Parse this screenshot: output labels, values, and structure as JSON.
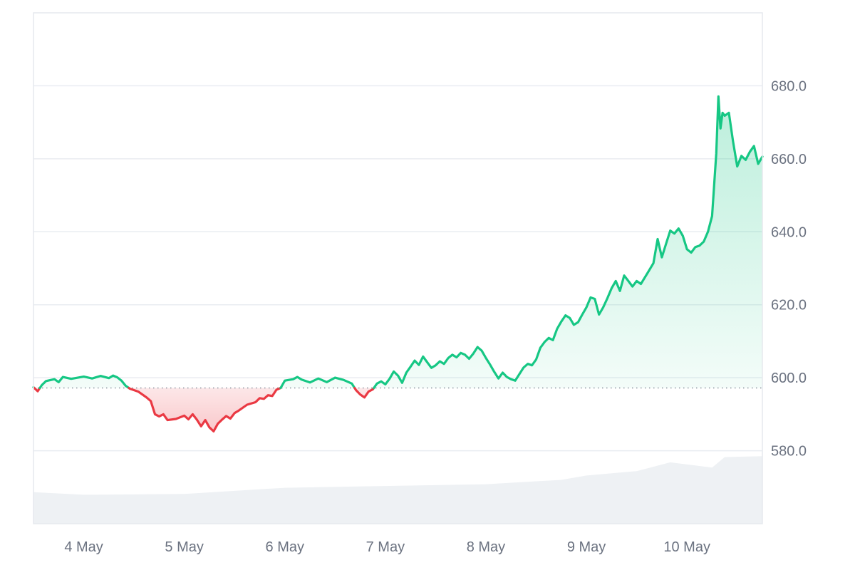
{
  "chart_data": {
    "type": "line",
    "baseline": 597.2,
    "ylim": [
      560,
      700
    ],
    "xlim": [
      "2024-05-03T12:00",
      "2024-05-10T18:00"
    ],
    "y_ticks": [
      {
        "value": 580,
        "label": "580.0"
      },
      {
        "value": 600,
        "label": "600.0"
      },
      {
        "value": 620,
        "label": "620.0"
      },
      {
        "value": 640,
        "label": "640.0"
      },
      {
        "value": 660,
        "label": "660.0"
      },
      {
        "value": 680,
        "label": "680.0"
      }
    ],
    "x_ticks": [
      {
        "value": "2024-05-04T00:00",
        "label": "4 May"
      },
      {
        "value": "2024-05-05T00:00",
        "label": "5 May"
      },
      {
        "value": "2024-05-06T00:00",
        "label": "6 May"
      },
      {
        "value": "2024-05-07T00:00",
        "label": "7 May"
      },
      {
        "value": "2024-05-08T00:00",
        "label": "8 May"
      },
      {
        "value": "2024-05-09T00:00",
        "label": "9 May"
      },
      {
        "value": "2024-05-10T00:00",
        "label": "10 May"
      }
    ],
    "series": [
      {
        "points": [
          [
            "2024-05-03T12:00",
            597.4
          ],
          [
            "2024-05-03T13:00",
            596.3
          ],
          [
            "2024-05-03T14:00",
            598.0
          ],
          [
            "2024-05-03T15:00",
            599.1
          ],
          [
            "2024-05-03T17:00",
            599.6
          ],
          [
            "2024-05-03T18:00",
            598.8
          ],
          [
            "2024-05-03T19:00",
            600.2
          ],
          [
            "2024-05-03T21:00",
            599.7
          ],
          [
            "2024-05-04T00:00",
            600.3
          ],
          [
            "2024-05-04T02:00",
            599.8
          ],
          [
            "2024-05-04T04:00",
            600.5
          ],
          [
            "2024-05-04T06:00",
            599.9
          ],
          [
            "2024-05-04T07:00",
            600.6
          ],
          [
            "2024-05-04T08:00",
            600.1
          ],
          [
            "2024-05-04T09:00",
            599.2
          ],
          [
            "2024-05-04T10:00",
            597.8
          ],
          [
            "2024-05-04T11:00",
            597.0
          ],
          [
            "2024-05-04T13:00",
            596.2
          ],
          [
            "2024-05-04T15:00",
            594.6
          ],
          [
            "2024-05-04T16:00",
            593.6
          ],
          [
            "2024-05-04T17:00",
            590.0
          ],
          [
            "2024-05-04T18:00",
            589.4
          ],
          [
            "2024-05-04T19:00",
            590.0
          ],
          [
            "2024-05-04T20:00",
            588.4
          ],
          [
            "2024-05-04T22:00",
            588.7
          ],
          [
            "2024-05-05T00:00",
            589.6
          ],
          [
            "2024-05-05T01:00",
            588.6
          ],
          [
            "2024-05-05T02:00",
            590.0
          ],
          [
            "2024-05-05T03:00",
            588.5
          ],
          [
            "2024-05-05T04:00",
            586.7
          ],
          [
            "2024-05-05T05:00",
            588.4
          ],
          [
            "2024-05-05T06:00",
            586.4
          ],
          [
            "2024-05-05T07:00",
            585.3
          ],
          [
            "2024-05-05T08:00",
            587.4
          ],
          [
            "2024-05-05T09:00",
            588.5
          ],
          [
            "2024-05-05T10:00",
            589.5
          ],
          [
            "2024-05-05T11:00",
            588.8
          ],
          [
            "2024-05-05T12:00",
            590.3
          ],
          [
            "2024-05-05T13:00",
            591.0
          ],
          [
            "2024-05-05T15:00",
            592.6
          ],
          [
            "2024-05-05T17:00",
            593.3
          ],
          [
            "2024-05-05T18:00",
            594.4
          ],
          [
            "2024-05-05T19:00",
            594.2
          ],
          [
            "2024-05-05T20:00",
            595.2
          ],
          [
            "2024-05-05T21:00",
            595.0
          ],
          [
            "2024-05-05T22:00",
            596.7
          ],
          [
            "2024-05-05T23:00",
            597.2
          ],
          [
            "2024-05-06T00:00",
            599.2
          ],
          [
            "2024-05-06T02:00",
            599.6
          ],
          [
            "2024-05-06T03:00",
            600.2
          ],
          [
            "2024-05-06T04:00",
            599.5
          ],
          [
            "2024-05-06T06:00",
            598.7
          ],
          [
            "2024-05-06T08:00",
            599.8
          ],
          [
            "2024-05-06T10:00",
            598.8
          ],
          [
            "2024-05-06T12:00",
            600.0
          ],
          [
            "2024-05-06T14:00",
            599.4
          ],
          [
            "2024-05-06T16:00",
            598.4
          ],
          [
            "2024-05-06T17:00",
            596.6
          ],
          [
            "2024-05-06T18:00",
            595.4
          ],
          [
            "2024-05-06T19:00",
            594.6
          ],
          [
            "2024-05-06T20:00",
            596.2
          ],
          [
            "2024-05-06T21:00",
            596.8
          ],
          [
            "2024-05-06T22:00",
            598.4
          ],
          [
            "2024-05-06T23:00",
            599.0
          ],
          [
            "2024-05-07T00:00",
            598.2
          ],
          [
            "2024-05-07T01:00",
            599.7
          ],
          [
            "2024-05-07T02:00",
            601.7
          ],
          [
            "2024-05-07T03:00",
            600.6
          ],
          [
            "2024-05-07T04:00",
            598.6
          ],
          [
            "2024-05-07T05:00",
            601.4
          ],
          [
            "2024-05-07T06:00",
            603.0
          ],
          [
            "2024-05-07T07:00",
            604.7
          ],
          [
            "2024-05-07T08:00",
            603.5
          ],
          [
            "2024-05-07T09:00",
            605.8
          ],
          [
            "2024-05-07T10:00",
            604.2
          ],
          [
            "2024-05-07T11:00",
            602.7
          ],
          [
            "2024-05-07T12:00",
            603.4
          ],
          [
            "2024-05-07T13:00",
            604.5
          ],
          [
            "2024-05-07T14:00",
            603.8
          ],
          [
            "2024-05-07T15:00",
            605.4
          ],
          [
            "2024-05-07T16:00",
            606.3
          ],
          [
            "2024-05-07T17:00",
            605.6
          ],
          [
            "2024-05-07T18:00",
            606.8
          ],
          [
            "2024-05-07T19:00",
            606.3
          ],
          [
            "2024-05-07T20:00",
            605.2
          ],
          [
            "2024-05-07T21:00",
            606.6
          ],
          [
            "2024-05-07T22:00",
            608.4
          ],
          [
            "2024-05-07T23:00",
            607.4
          ],
          [
            "2024-05-08T00:00",
            605.4
          ],
          [
            "2024-05-08T01:00",
            603.6
          ],
          [
            "2024-05-08T02:00",
            601.6
          ],
          [
            "2024-05-08T03:00",
            599.8
          ],
          [
            "2024-05-08T04:00",
            601.4
          ],
          [
            "2024-05-08T05:00",
            600.2
          ],
          [
            "2024-05-08T06:00",
            599.6
          ],
          [
            "2024-05-08T07:00",
            599.2
          ],
          [
            "2024-05-08T08:00",
            601.0
          ],
          [
            "2024-05-08T09:00",
            602.8
          ],
          [
            "2024-05-08T10:00",
            603.8
          ],
          [
            "2024-05-08T11:00",
            603.4
          ],
          [
            "2024-05-08T12:00",
            605.0
          ],
          [
            "2024-05-08T13:00",
            608.2
          ],
          [
            "2024-05-08T14:00",
            609.8
          ],
          [
            "2024-05-08T15:00",
            610.9
          ],
          [
            "2024-05-08T16:00",
            610.3
          ],
          [
            "2024-05-08T17:00",
            613.4
          ],
          [
            "2024-05-08T18:00",
            615.4
          ],
          [
            "2024-05-08T19:00",
            617.1
          ],
          [
            "2024-05-08T20:00",
            616.4
          ],
          [
            "2024-05-08T21:00",
            614.5
          ],
          [
            "2024-05-08T22:00",
            615.2
          ],
          [
            "2024-05-08T23:00",
            617.3
          ],
          [
            "2024-05-09T00:00",
            619.3
          ],
          [
            "2024-05-09T01:00",
            622.0
          ],
          [
            "2024-05-09T02:00",
            621.6
          ],
          [
            "2024-05-09T03:00",
            617.3
          ],
          [
            "2024-05-09T04:00",
            619.3
          ],
          [
            "2024-05-09T05:00",
            621.8
          ],
          [
            "2024-05-09T06:00",
            624.5
          ],
          [
            "2024-05-09T07:00",
            626.5
          ],
          [
            "2024-05-09T08:00",
            623.8
          ],
          [
            "2024-05-09T09:00",
            628.0
          ],
          [
            "2024-05-09T10:00",
            626.5
          ],
          [
            "2024-05-09T11:00",
            625.0
          ],
          [
            "2024-05-09T12:00",
            626.5
          ],
          [
            "2024-05-09T13:00",
            625.7
          ],
          [
            "2024-05-09T14:00",
            627.6
          ],
          [
            "2024-05-09T15:00",
            629.5
          ],
          [
            "2024-05-09T16:00",
            631.4
          ],
          [
            "2024-05-09T17:00",
            638.0
          ],
          [
            "2024-05-09T18:00",
            633.0
          ],
          [
            "2024-05-09T19:00",
            636.7
          ],
          [
            "2024-05-09T20:00",
            640.3
          ],
          [
            "2024-05-09T21:00",
            639.5
          ],
          [
            "2024-05-09T22:00",
            640.9
          ],
          [
            "2024-05-09T23:00",
            638.9
          ],
          [
            "2024-05-10T00:00",
            635.2
          ],
          [
            "2024-05-10T01:00",
            634.3
          ],
          [
            "2024-05-10T02:00",
            635.8
          ],
          [
            "2024-05-10T03:00",
            636.2
          ],
          [
            "2024-05-10T04:00",
            637.3
          ],
          [
            "2024-05-10T05:00",
            640.0
          ],
          [
            "2024-05-10T06:00",
            644.3
          ],
          [
            "2024-05-10T07:00",
            661.5
          ],
          [
            "2024-05-10T07:30",
            677.1
          ],
          [
            "2024-05-10T08:00",
            668.3
          ],
          [
            "2024-05-10T08:30",
            672.6
          ],
          [
            "2024-05-10T09:00",
            671.8
          ],
          [
            "2024-05-10T10:00",
            672.6
          ],
          [
            "2024-05-10T11:00",
            664.8
          ],
          [
            "2024-05-10T12:00",
            657.9
          ],
          [
            "2024-05-10T13:00",
            660.8
          ],
          [
            "2024-05-10T14:00",
            659.7
          ],
          [
            "2024-05-10T15:00",
            661.9
          ],
          [
            "2024-05-10T16:00",
            663.5
          ],
          [
            "2024-05-10T17:00",
            658.6
          ],
          [
            "2024-05-10T18:00",
            660.6
          ]
        ],
        "colors": {
          "above": "#16c784",
          "below": "#ea3943"
        }
      }
    ],
    "volume": {
      "points": [
        [
          "2024-05-03T12:00",
          0.36
        ],
        [
          "2024-05-04T00:00",
          0.33
        ],
        [
          "2024-05-05T00:00",
          0.34
        ],
        [
          "2024-05-06T00:00",
          0.41
        ],
        [
          "2024-05-07T00:00",
          0.43
        ],
        [
          "2024-05-08T00:00",
          0.45
        ],
        [
          "2024-05-08T18:00",
          0.5
        ],
        [
          "2024-05-09T00:00",
          0.55
        ],
        [
          "2024-05-09T12:00",
          0.6
        ],
        [
          "2024-05-09T20:00",
          0.7
        ],
        [
          "2024-05-10T06:00",
          0.64
        ],
        [
          "2024-05-10T09:00",
          0.76
        ],
        [
          "2024-05-10T18:00",
          0.77
        ]
      ],
      "color": "#eef1f4"
    },
    "colors": {
      "grid": "#e9ecf1",
      "tick_text": "#6b7280",
      "baseline": "#8c94a0"
    },
    "grid": true
  }
}
